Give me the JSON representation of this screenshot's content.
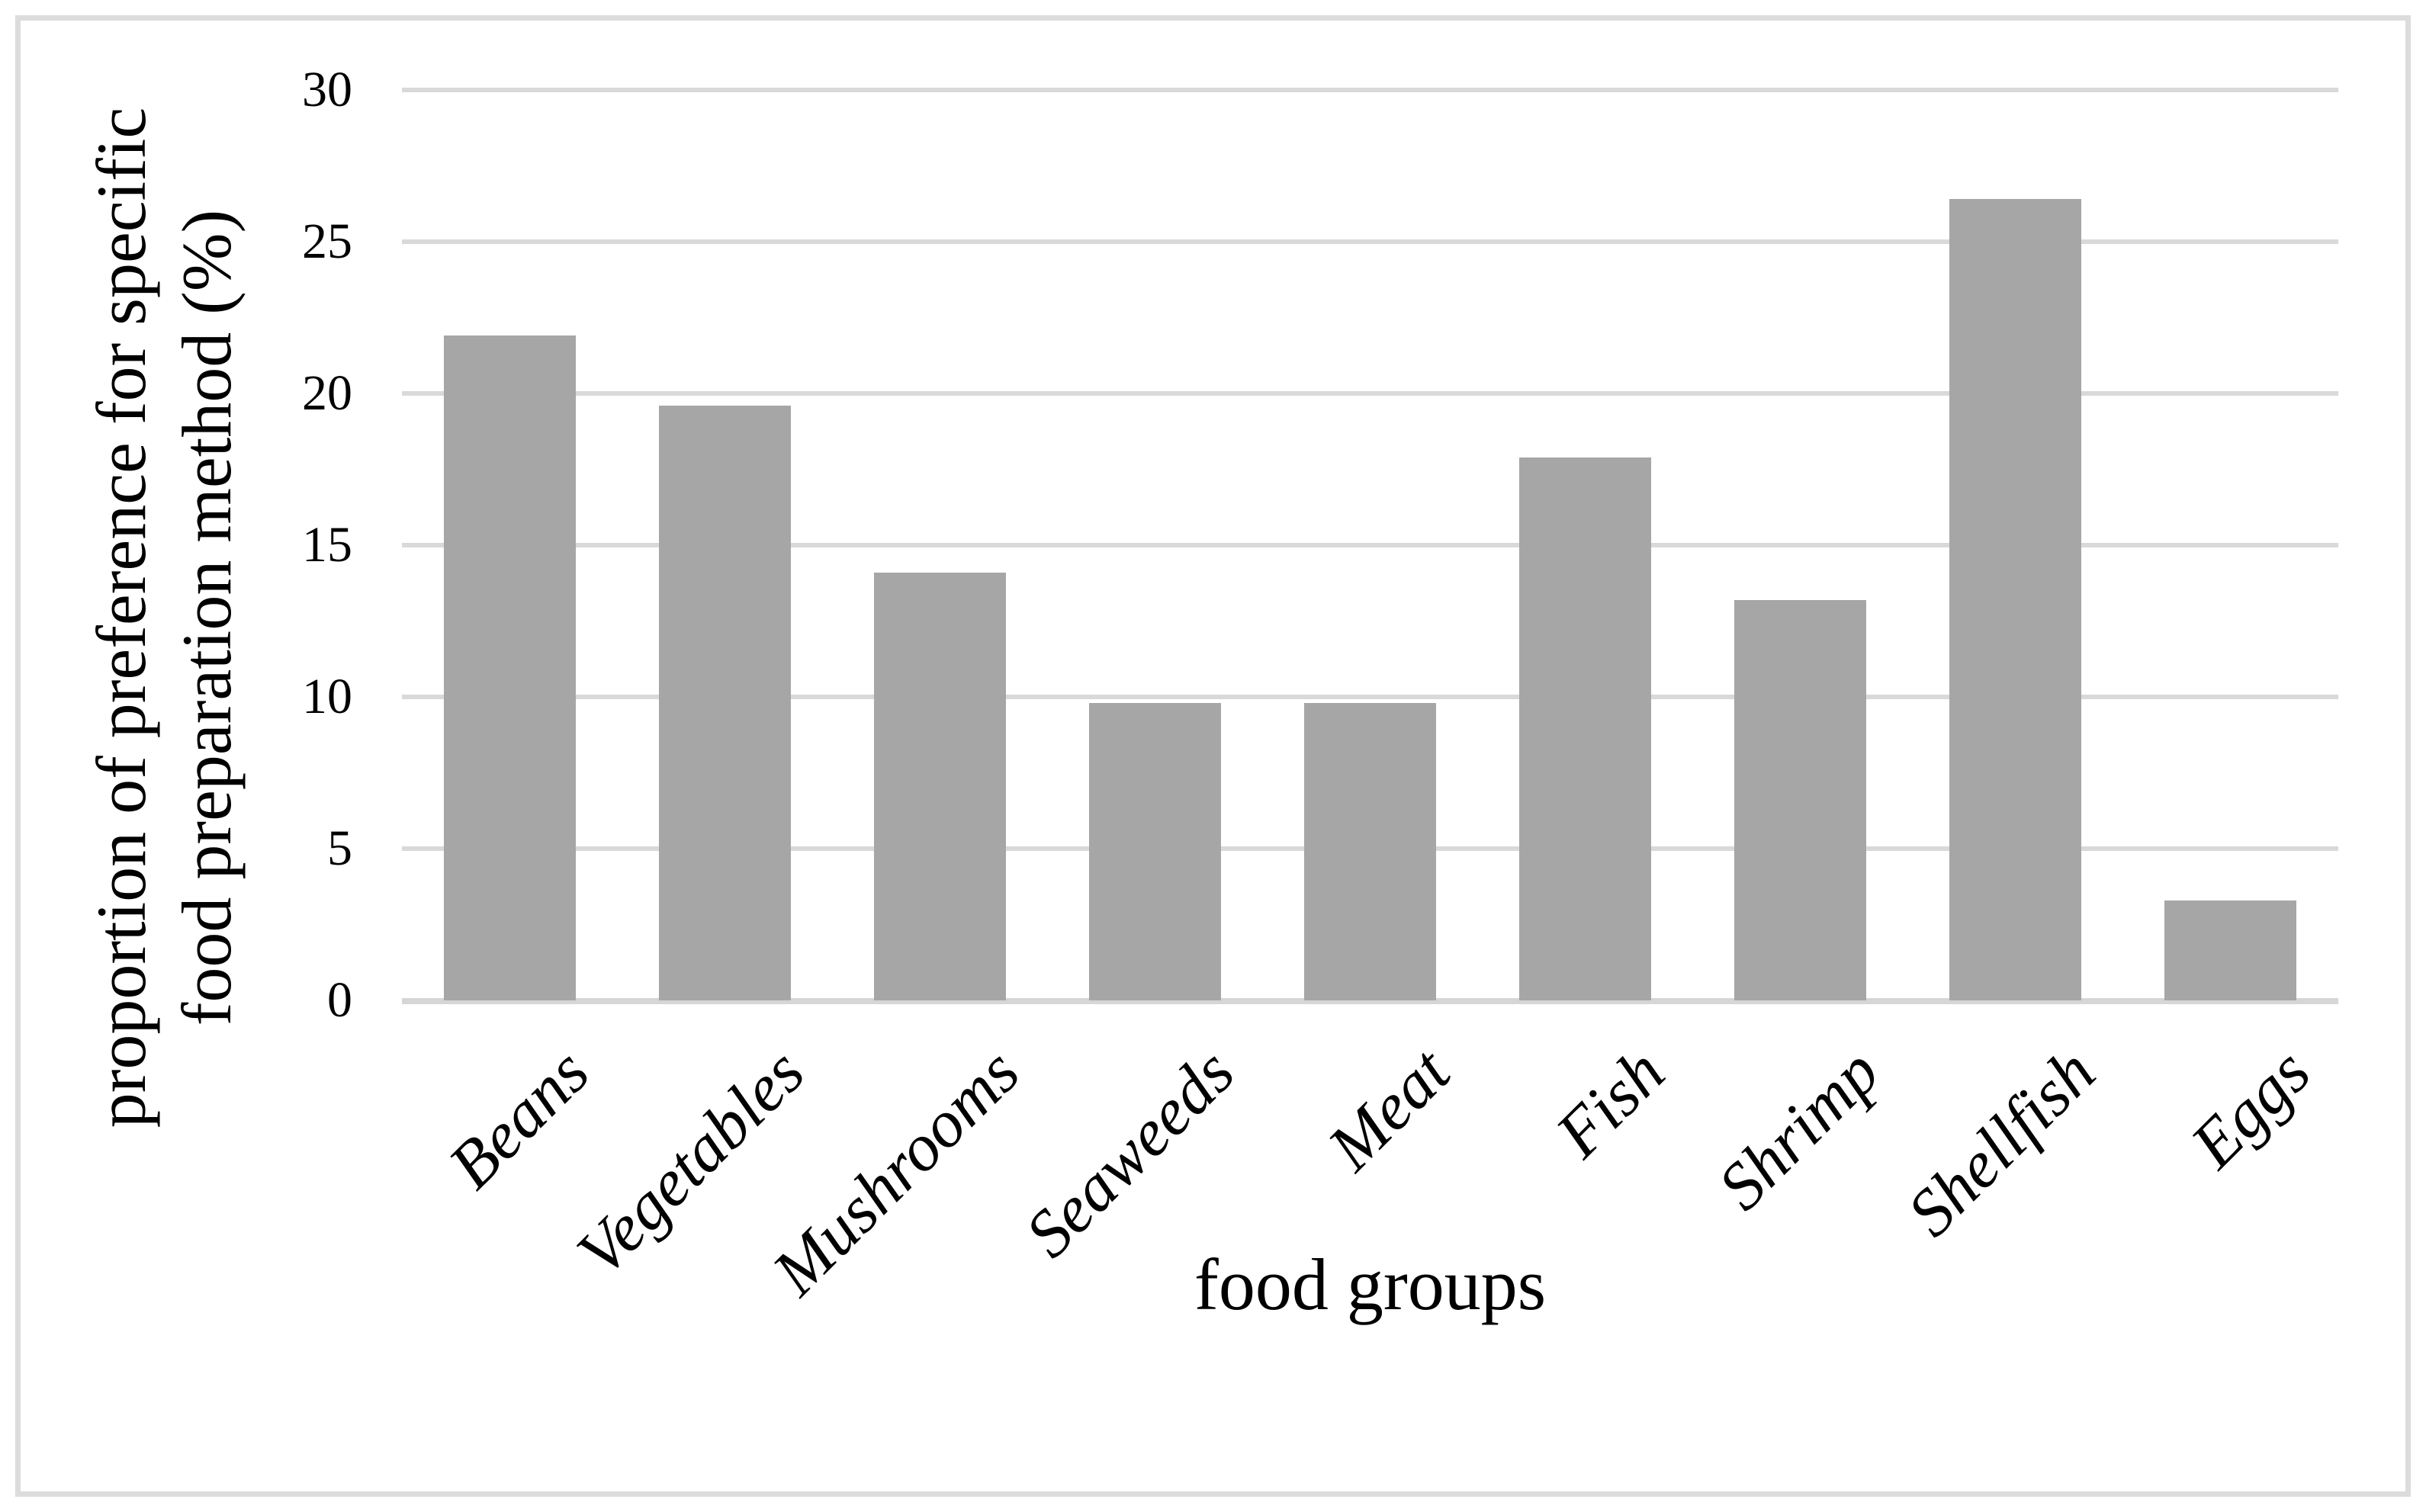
{
  "figure": {
    "background": "#ffffff",
    "border_color": "#dcdcdc"
  },
  "chart_data": {
    "type": "bar",
    "categories": [
      "Beans",
      "Vegetables",
      "Mushrooms",
      "Seaweeds",
      "Meat",
      "Fish",
      "Shrimp",
      "Shellfish",
      "Eggs"
    ],
    "values": [
      21.9,
      19.6,
      14.1,
      9.8,
      9.8,
      17.9,
      13.2,
      26.4,
      3.3
    ],
    "title": "",
    "xlabel": "food groups",
    "ylabel": "proportion of preference for specific food preparation method (%)",
    "ylabel_line1": "proportion of preference for specific",
    "ylabel_line2": "food preparation method (%)",
    "ylim": [
      0,
      30
    ],
    "yticks": [
      0,
      5,
      10,
      15,
      20,
      25,
      30
    ],
    "bar_color": "#a6a6a6",
    "gridline_color": "#d9d9d9",
    "axis_line_color": "#d6d6d6",
    "grid": true,
    "legend": false,
    "category_labels_rotation_deg": -45,
    "ylabel_rotation_deg": -90
  }
}
